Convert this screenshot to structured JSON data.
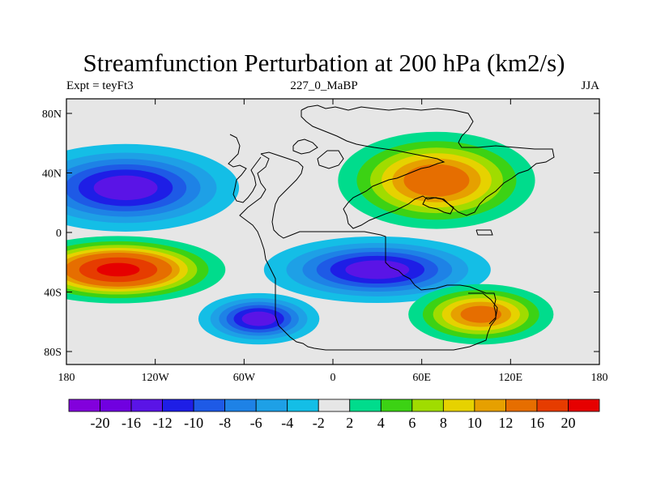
{
  "title": "Streamfunction Perturbation at 200 hPa (km2/s)",
  "left_string": "Expt = teyFt3",
  "center_string": "227_0_MaBP",
  "right_string": "JJA",
  "variable": "Streamfunction Perturbation",
  "level": "200 hPa",
  "units": "km2/s",
  "lat_labels": [
    {
      "text": "80N",
      "lat": 80
    },
    {
      "text": "40N",
      "lat": 40
    },
    {
      "text": "0",
      "lat": 0
    },
    {
      "text": "40S",
      "lat": -40
    },
    {
      "text": "80S",
      "lat": -80
    }
  ],
  "lon_labels": [
    {
      "text": "180",
      "lon": -180
    },
    {
      "text": "120W",
      "lon": -120
    },
    {
      "text": "60W",
      "lon": -60
    },
    {
      "text": "0",
      "lon": 0
    },
    {
      "text": "60E",
      "lon": 60
    },
    {
      "text": "120E",
      "lon": 120
    },
    {
      "text": "180",
      "lon": 180
    }
  ],
  "colorbar": {
    "levels": [
      "-20",
      "-16",
      "-12",
      "-10",
      "-8",
      "-6",
      "-4",
      "-2",
      "2",
      "4",
      "6",
      "8",
      "10",
      "12",
      "16",
      "20"
    ],
    "colors": [
      "#8200dc",
      "#7000e0",
      "#5a14e6",
      "#1e1ee6",
      "#1e5ae6",
      "#1e82e6",
      "#1ea0e6",
      "#14bee6",
      "#e6e6e6",
      "#00dc8c",
      "#3cd214",
      "#a0dc00",
      "#e6d200",
      "#e6a000",
      "#e66e00",
      "#e63c00",
      "#e60000"
    ]
  },
  "centers": [
    {
      "name": "north-pacific-low",
      "lon": -140,
      "lat": 30,
      "value": -14
    },
    {
      "name": "eurasia-high",
      "lon": 70,
      "lat": 35,
      "value": 15
    },
    {
      "name": "south-pacific-high",
      "lon": -145,
      "lat": -25,
      "value": 22
    },
    {
      "name": "south-atlantic-low",
      "lon": 30,
      "lat": -25,
      "value": -14
    },
    {
      "name": "southern-ocean-low",
      "lon": -50,
      "lat": -58,
      "value": -14
    },
    {
      "name": "southern-indian-high",
      "lon": 100,
      "lat": -55,
      "value": 14
    }
  ]
}
